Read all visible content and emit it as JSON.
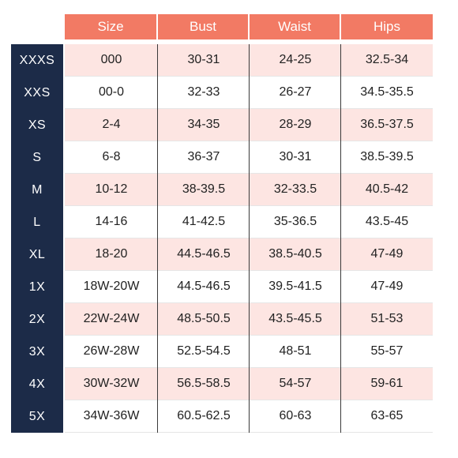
{
  "headers": [
    "Size",
    "Bust",
    "Waist",
    "Hips"
  ],
  "rows": [
    {
      "label": "XXXS",
      "size": "000",
      "bust": "30-31",
      "waist": "24-25",
      "hips": "32.5-34"
    },
    {
      "label": "XXS",
      "size": "00-0",
      "bust": "32-33",
      "waist": "26-27",
      "hips": "34.5-35.5"
    },
    {
      "label": "XS",
      "size": "2-4",
      "bust": "34-35",
      "waist": "28-29",
      "hips": "36.5-37.5"
    },
    {
      "label": "S",
      "size": "6-8",
      "bust": "36-37",
      "waist": "30-31",
      "hips": "38.5-39.5"
    },
    {
      "label": "M",
      "size": "10-12",
      "bust": "38-39.5",
      "waist": "32-33.5",
      "hips": "40.5-42"
    },
    {
      "label": "L",
      "size": "14-16",
      "bust": "41-42.5",
      "waist": "35-36.5",
      "hips": "43.5-45"
    },
    {
      "label": "XL",
      "size": "18-20",
      "bust": "44.5-46.5",
      "waist": "38.5-40.5",
      "hips": "47-49"
    },
    {
      "label": "1X",
      "size": "18W-20W",
      "bust": "44.5-46.5",
      "waist": "39.5-41.5",
      "hips": "47-49"
    },
    {
      "label": "2X",
      "size": "22W-24W",
      "bust": "48.5-50.5",
      "waist": "43.5-45.5",
      "hips": "51-53"
    },
    {
      "label": "3X",
      "size": "26W-28W",
      "bust": "52.5-54.5",
      "waist": "48-51",
      "hips": "55-57"
    },
    {
      "label": "4X",
      "size": "30W-32W",
      "bust": "56.5-58.5",
      "waist": "54-57",
      "hips": "59-61"
    },
    {
      "label": "5X",
      "size": "34W-36W",
      "bust": "60.5-62.5",
      "waist": "60-63",
      "hips": "63-65"
    }
  ],
  "colors": {
    "header_bg": "#f27a64",
    "sidebar_bg": "#1c2b48",
    "shaded_row": "#fde5e2",
    "text": "#222222"
  }
}
